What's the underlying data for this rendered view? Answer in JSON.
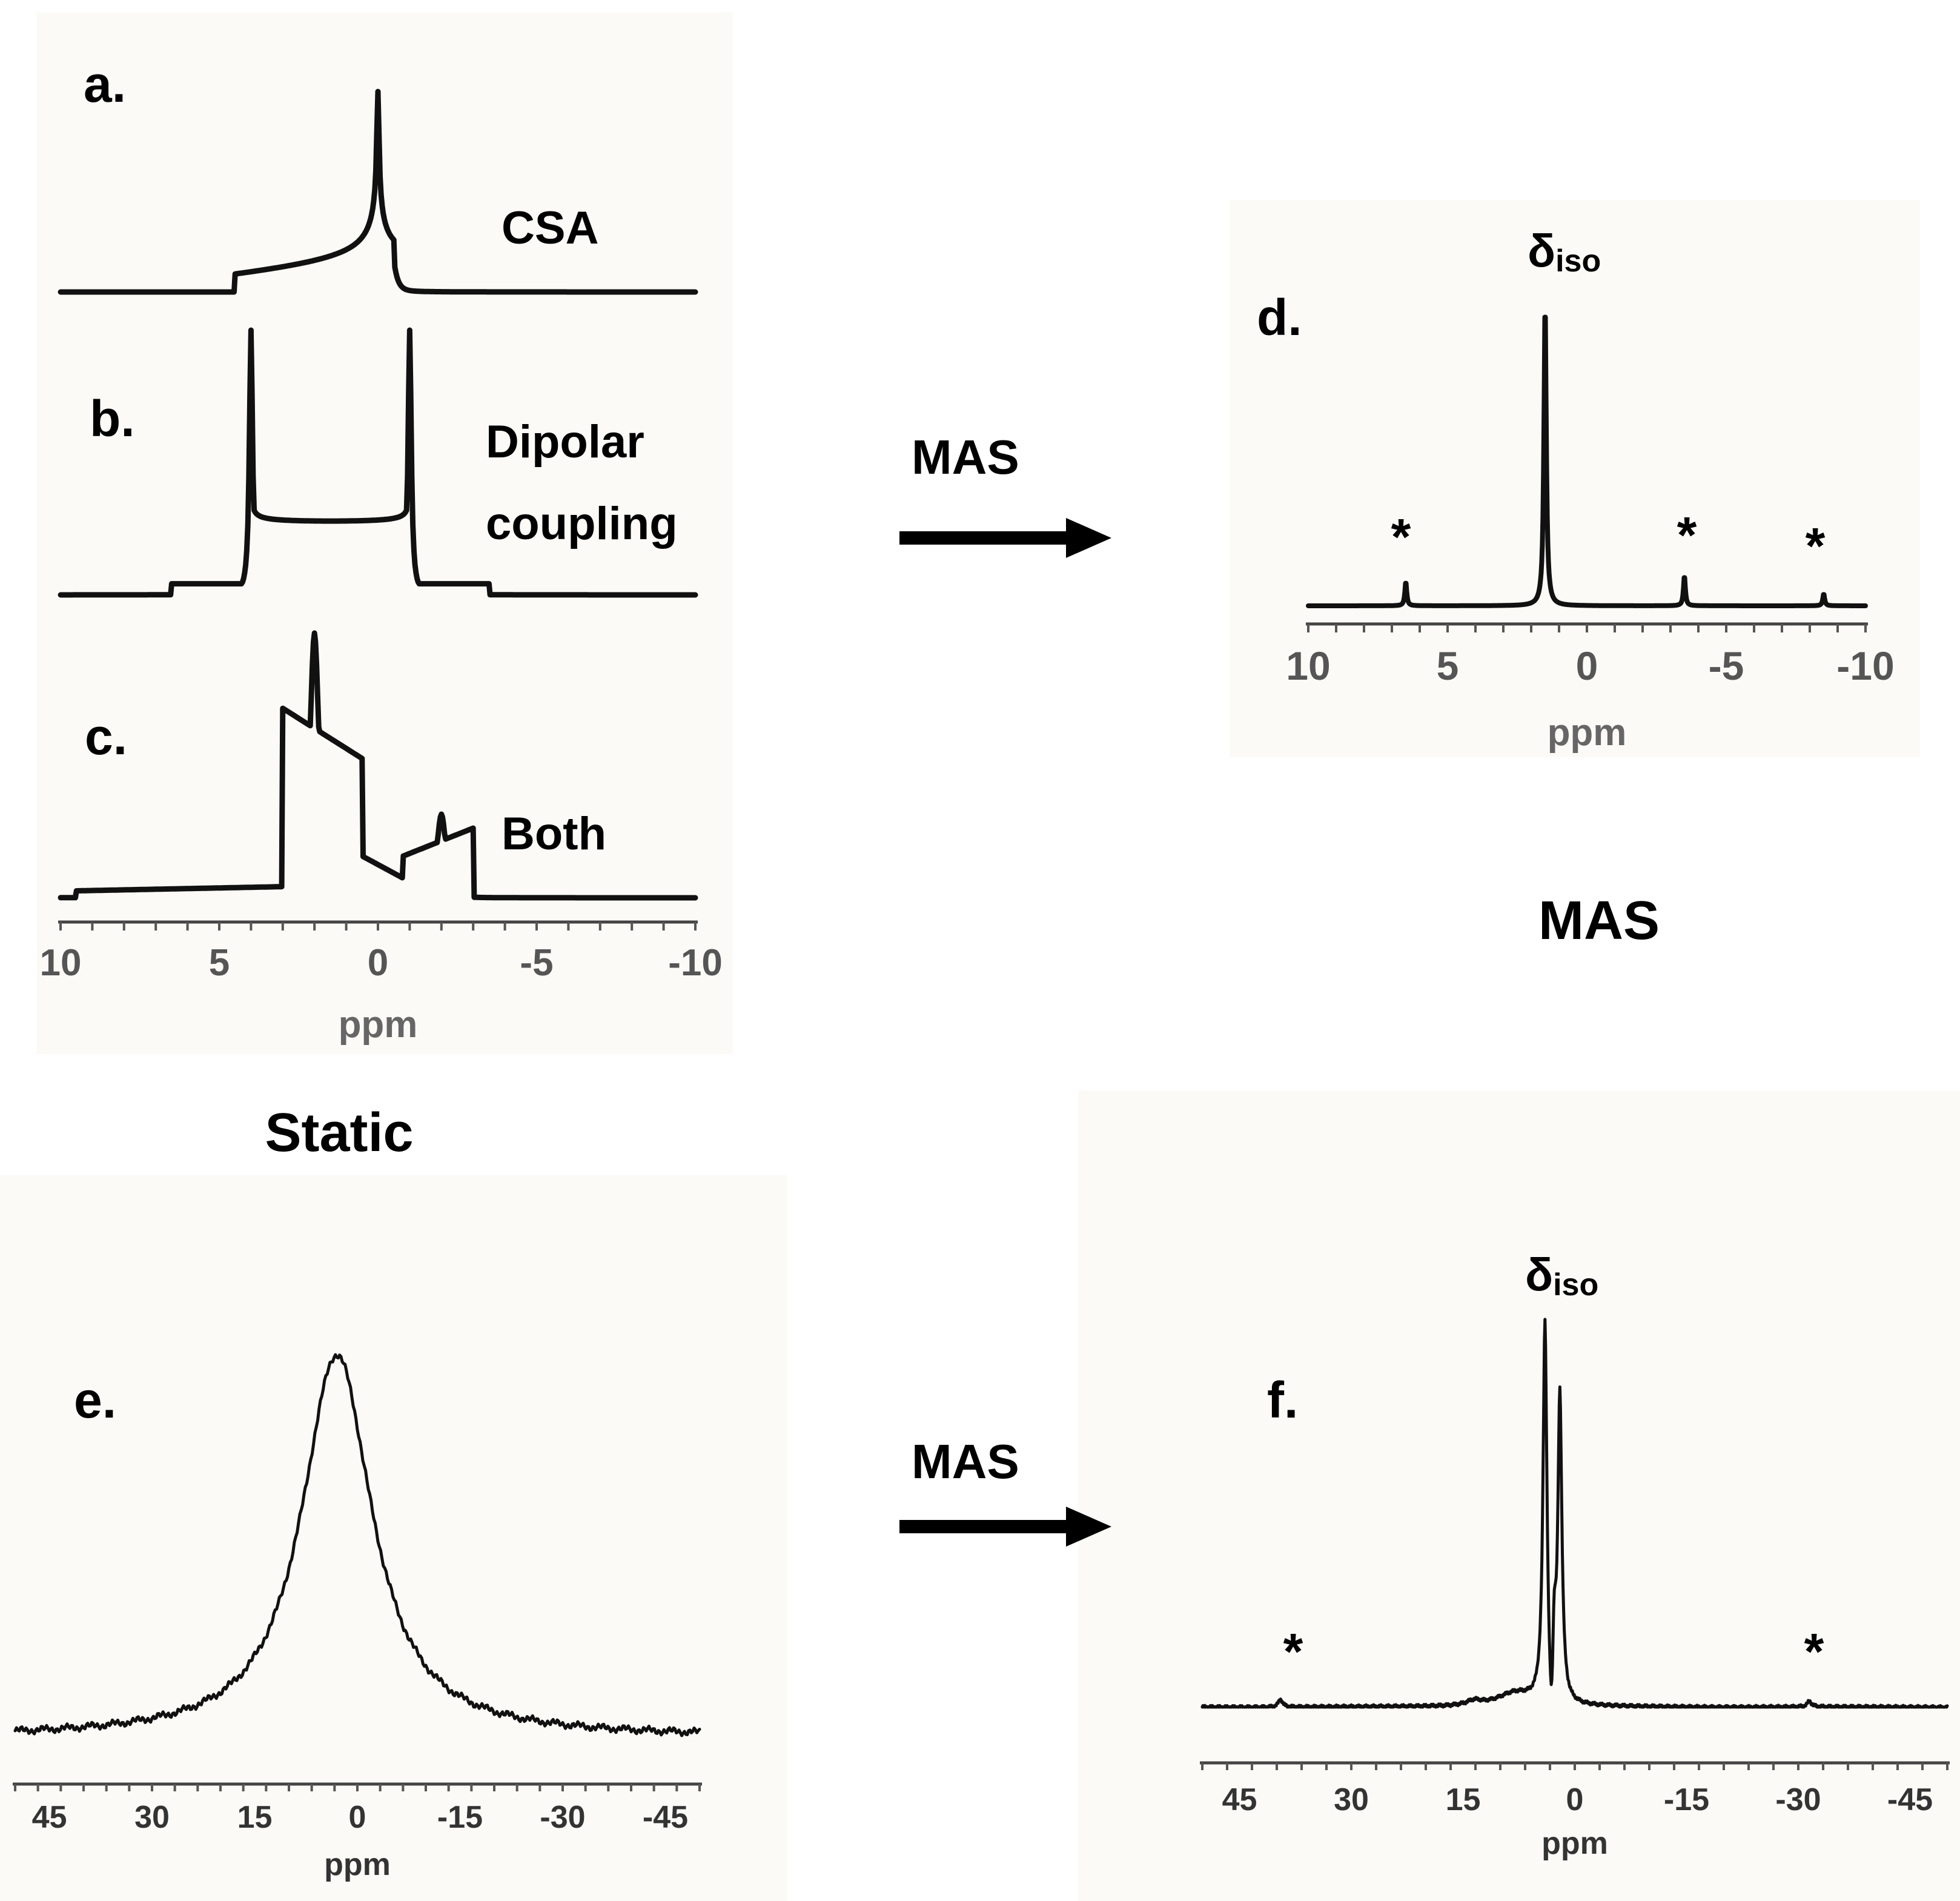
{
  "figure": {
    "panel_labels": {
      "a": "a.",
      "b": "b.",
      "c": "c.",
      "d": "d.",
      "e": "e.",
      "f": "f."
    },
    "interaction_labels": {
      "csa": "CSA",
      "dipolar_line1": "Dipolar",
      "dipolar_line2": "coupling",
      "both": "Both"
    },
    "static_label": "Static",
    "mas_heading": "MAS",
    "arrow_label_top": "MAS",
    "arrow_label_bottom": "MAS",
    "delta_symbol": "δ",
    "delta_subscript": "iso",
    "sideband_marker": "*"
  },
  "chart_data": [
    {
      "id": "abc",
      "type": "line",
      "title": "",
      "xlabel": "ppm",
      "ylabel": "",
      "xlim": [
        10,
        -10
      ],
      "xticks": [
        "10",
        "5",
        "0",
        "-5",
        "-10"
      ],
      "series": [
        {
          "name": "CSA",
          "lineshape": "csa_powder_pattern",
          "shoulder_ppm": 4.5,
          "peak_ppm": 0,
          "edge_ppm": -0.5
        },
        {
          "name": "Dipolar coupling",
          "lineshape": "pake_doublet",
          "horns_ppm": [
            4,
            -1
          ],
          "feet_ppm": [
            6.5,
            -3.5
          ]
        },
        {
          "name": "Both",
          "lineshape": "csa_plus_dipolar",
          "peaks_ppm": [
            2,
            -2
          ],
          "edges_ppm": [
            3,
            -3
          ],
          "foot_ppm": 9.5
        }
      ]
    },
    {
      "id": "d",
      "type": "line",
      "title": "",
      "xlabel": "ppm",
      "xlim": [
        10,
        -10
      ],
      "xticks": [
        "10",
        "5",
        "0",
        "-5",
        "-10"
      ],
      "peaks": [
        {
          "ppm": 1.5,
          "height": 1.0,
          "label": "δiso"
        },
        {
          "ppm": 6.5,
          "height": 0.08,
          "label": "*"
        },
        {
          "ppm": -3.5,
          "height": 0.1,
          "label": "*"
        },
        {
          "ppm": -8.5,
          "height": 0.04,
          "label": "*"
        }
      ]
    },
    {
      "id": "e",
      "type": "line",
      "title": "",
      "xlabel": "ppm",
      "xlim": [
        50,
        -50
      ],
      "xticks": [
        "45",
        "30",
        "15",
        "0",
        "-15",
        "-30",
        "-45"
      ],
      "peaks": [
        {
          "ppm": 3,
          "height": 1.0,
          "linewidth_ppm": 10,
          "shape": "lorentzian"
        }
      ]
    },
    {
      "id": "f",
      "type": "line",
      "title": "",
      "xlabel": "ppm",
      "xlim": [
        50,
        -50
      ],
      "xticks": [
        "45",
        "30",
        "15",
        "0",
        "-15",
        "-30",
        "-45"
      ],
      "peaks": [
        {
          "ppm": 4,
          "height": 1.0,
          "label": "δiso"
        },
        {
          "ppm": 2,
          "height": 0.8
        },
        {
          "ppm": 2.8,
          "height": 0.38
        },
        {
          "ppm": 39.5,
          "height": 0.02,
          "label": "*"
        },
        {
          "ppm": -31.5,
          "height": 0.015,
          "label": "*"
        }
      ]
    }
  ]
}
